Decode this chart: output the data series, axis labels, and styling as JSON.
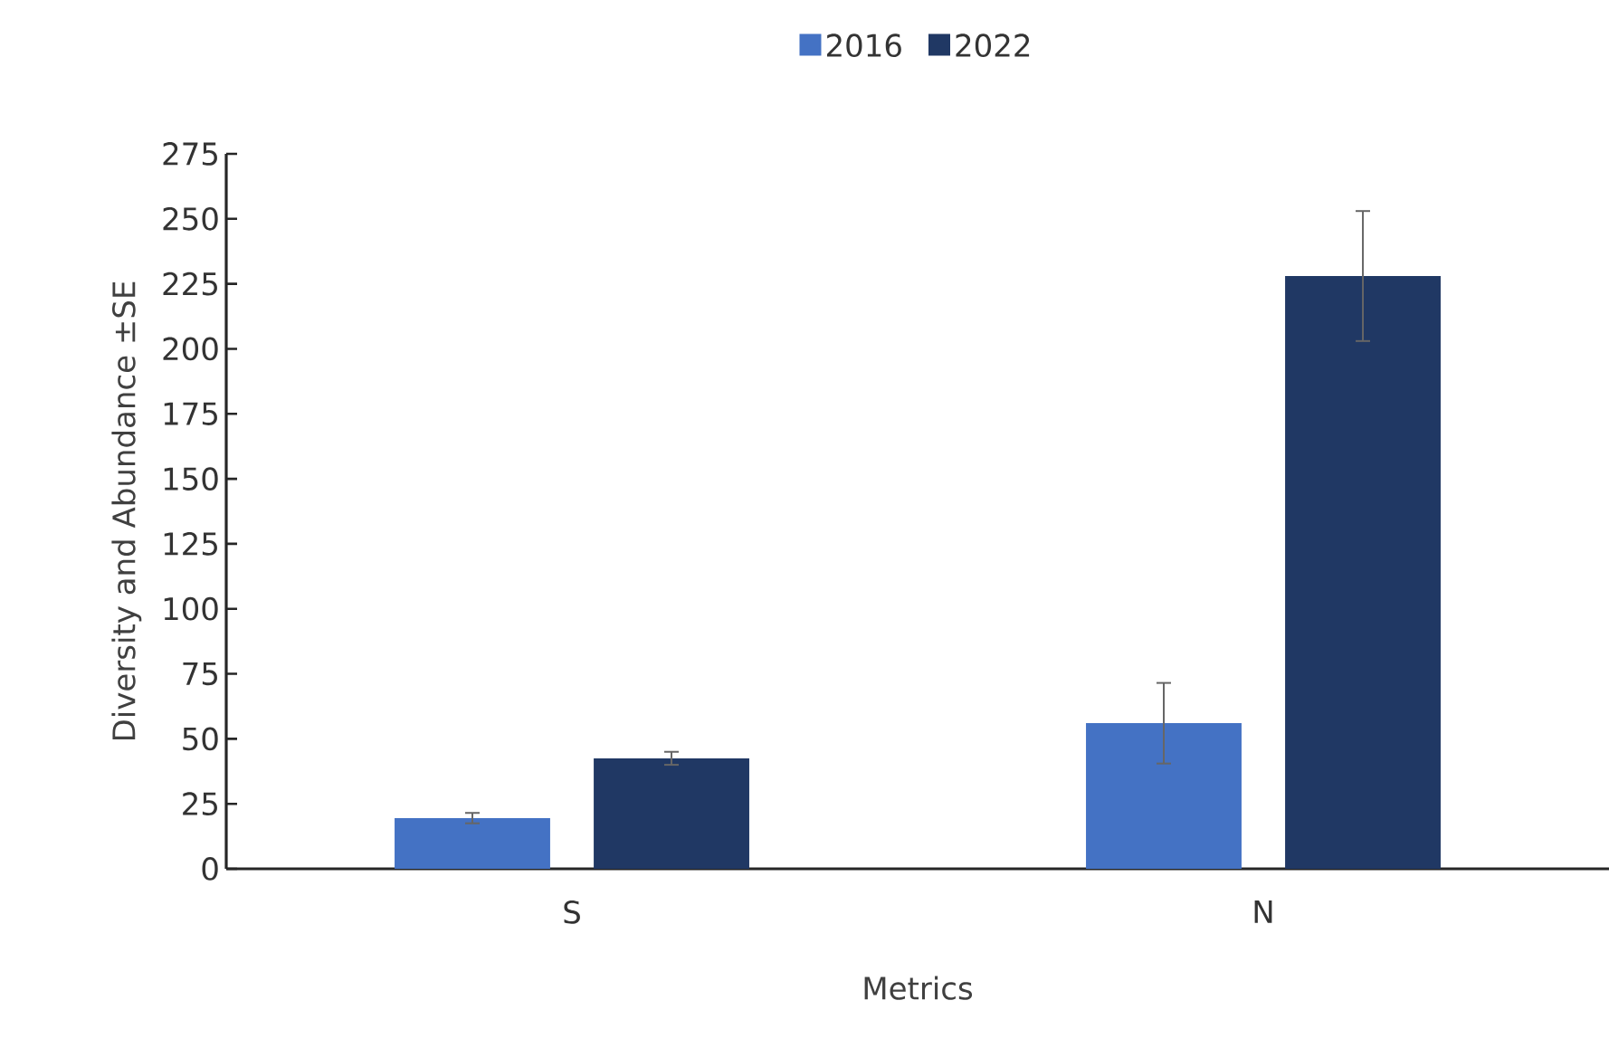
{
  "chart_data": {
    "type": "bar",
    "xlabel": "Metrics",
    "ylabel": "Diversity and Abundance ±SE",
    "categories": [
      "S",
      "N"
    ],
    "series": [
      {
        "name": "2016",
        "color": "#4472c4",
        "values": [
          19.5,
          56
        ],
        "errors": [
          2,
          15.5
        ]
      },
      {
        "name": "2022",
        "color": "#203864",
        "values": [
          42.5,
          228
        ],
        "errors": [
          2.5,
          25
        ]
      }
    ],
    "ylim": [
      0,
      275
    ],
    "yticks": [
      0,
      25,
      50,
      75,
      100,
      125,
      150,
      175,
      200,
      225,
      250,
      275
    ],
    "grid": false,
    "legend": "top"
  }
}
